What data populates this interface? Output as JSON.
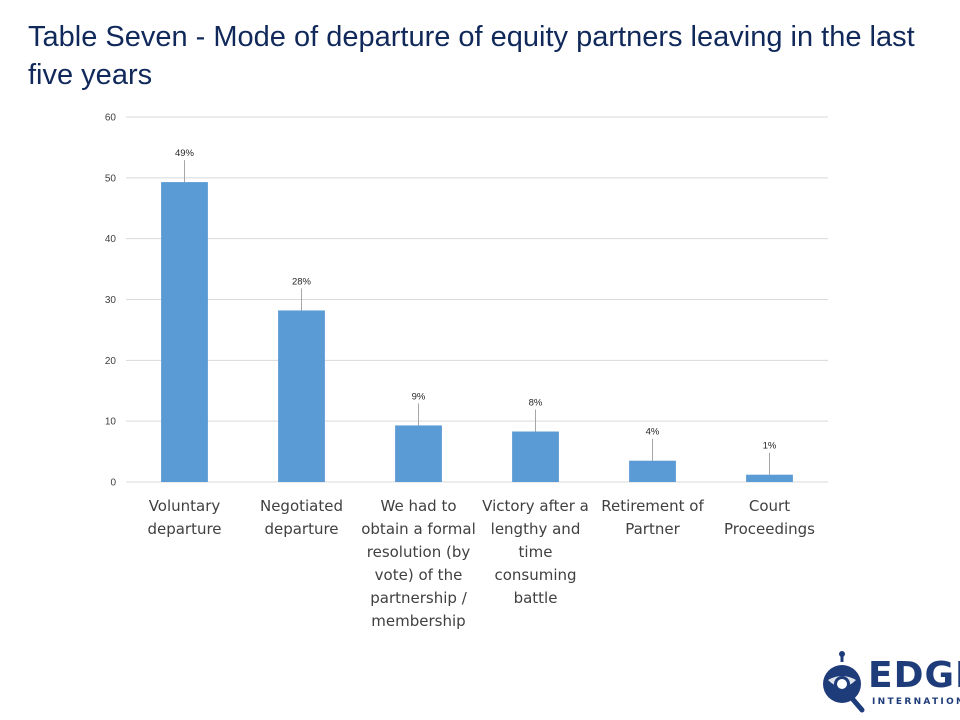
{
  "title": "Table Seven - Mode of departure of equity partners leaving in the last five years",
  "colors": {
    "bar": "#5b9bd5",
    "title": "#10295a",
    "grid": "#d9d9d9",
    "brand": "#1f3c7a"
  },
  "chart_data": {
    "type": "bar",
    "categories": [
      [
        "Voluntary",
        "departure"
      ],
      [
        "Negotiated",
        "departure"
      ],
      [
        "We had to",
        "obtain a formal",
        "resolution (by",
        "vote) of the",
        "partnership /",
        "membership"
      ],
      [
        "Victory after a",
        "lengthy and",
        "time",
        "consuming",
        "battle"
      ],
      [
        "Retirement of",
        "Partner"
      ],
      [
        "Court",
        "Proceedings"
      ]
    ],
    "values": [
      49.3,
      28.2,
      9.3,
      8.3,
      3.5,
      1.2
    ],
    "data_labels": [
      "49%",
      "28%",
      "9%",
      "8%",
      "4%",
      "1%"
    ],
    "yticks": [
      0,
      10,
      20,
      30,
      40,
      50,
      60
    ],
    "ylim": [
      0,
      60
    ],
    "grid": true,
    "legend": "none"
  },
  "logo": {
    "word": "EDGE",
    "sub": "INTERNATIONAL",
    "icon": "edge-globe-logo-icon"
  }
}
